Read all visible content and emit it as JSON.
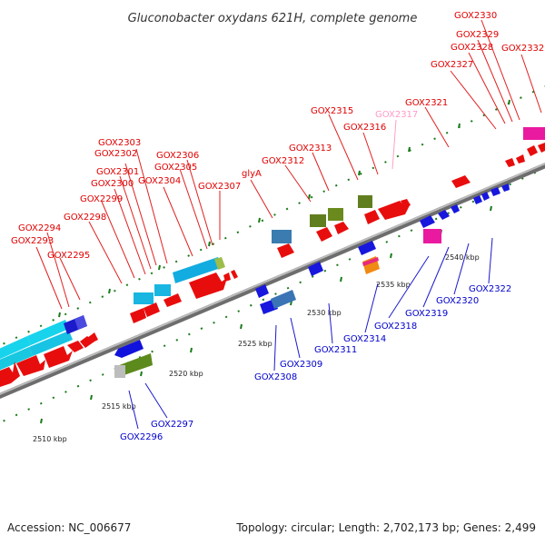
{
  "title": "Gluconobacter oxydans 621H, complete genome",
  "footer": {
    "accession": "Accession: NC_006677",
    "info": "Topology: circular; Length: 2,702,173 bp; Genes: 2,499"
  },
  "ruler_labels": [
    "2510 kbp",
    "2515 kbp",
    "2520 kbp",
    "2525 kbp",
    "2530 kbp",
    "2535 kbp",
    "2540 kbp"
  ],
  "genes_top": [
    "GOX2293",
    "GOX2294",
    "GOX2295",
    "GOX2298",
    "GOX2299",
    "GOX2300",
    "GOX2301",
    "GOX2302",
    "GOX2303",
    "GOX2304",
    "GOX2305",
    "GOX2306",
    "GOX2307",
    "glyA",
    "GOX2312",
    "GOX2313",
    "GOX2315",
    "GOX2316",
    "GOX2321",
    "GOX2327",
    "GOX2328",
    "GOX2329",
    "GOX2330",
    "GOX2332"
  ],
  "genes_top_pink": [
    "GOX2317"
  ],
  "genes_bottom": [
    "GOX2296",
    "GOX2297",
    "GOX2308",
    "GOX2309",
    "GOX2311",
    "GOX2314",
    "GOX2318",
    "GOX2319",
    "GOX2320",
    "GOX2322"
  ]
}
